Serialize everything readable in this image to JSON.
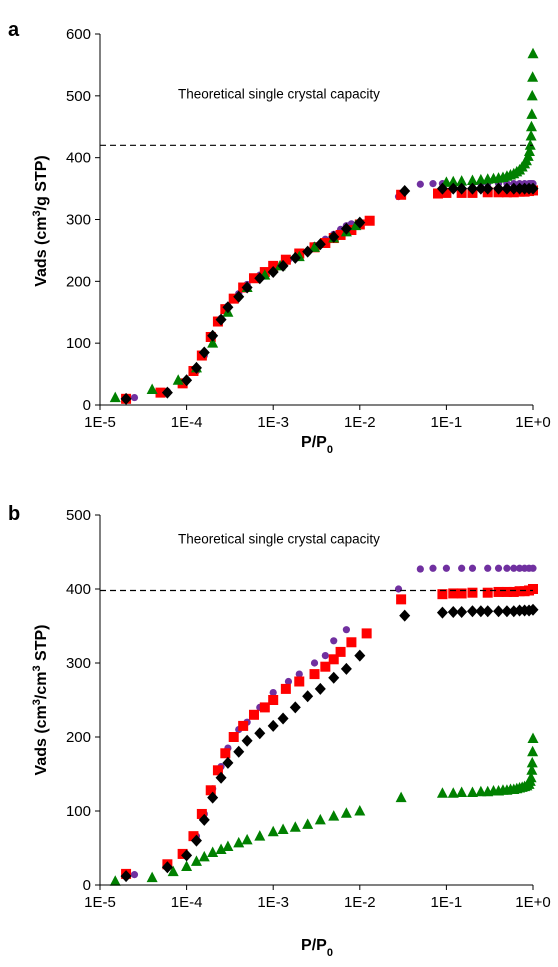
{
  "chart_data": [
    {
      "type": "scatter",
      "panel_label": "a",
      "title": "",
      "xlabel": "P/P",
      "xlabel_sub": "0",
      "ylabel_pre": "Vads (cm",
      "ylabel_sup": "3",
      "ylabel_post": "/g STP)",
      "xscale": "log",
      "xlim": [
        1e-05,
        1
      ],
      "ylim": [
        0,
        600
      ],
      "xtick_labels": [
        "1E-5",
        "1E-4",
        "1E-3",
        "1E-2",
        "1E-1",
        "1E+0"
      ],
      "ytick_values": [
        0,
        100,
        200,
        300,
        400,
        500,
        600
      ],
      "grid": false,
      "annotation": {
        "text": "Theoretical single crystal capacity",
        "reference_y": 420
      },
      "series": [
        {
          "marker": "circle",
          "color": "#7030a0",
          "x": [
            2.5e-05,
            6e-05,
            9e-05,
            0.00013,
            0.00016,
            0.0002,
            0.00025,
            0.0003,
            0.0004,
            0.0005,
            0.0007,
            0.001,
            0.0015,
            0.002,
            0.003,
            0.004,
            0.005,
            0.006,
            0.007,
            0.008,
            0.028,
            0.05,
            0.07,
            0.09,
            0.12,
            0.15,
            0.2,
            0.25,
            0.3,
            0.4,
            0.5,
            0.6,
            0.7,
            0.8,
            0.9,
            0.95,
            1.0
          ],
          "y": [
            12,
            22,
            36,
            55,
            80,
            110,
            140,
            160,
            180,
            195,
            210,
            225,
            235,
            245,
            258,
            268,
            276,
            284,
            290,
            293,
            337,
            357,
            358,
            358,
            358,
            358,
            358,
            358,
            358,
            358,
            358,
            358,
            358,
            358,
            358,
            358,
            358
          ]
        },
        {
          "marker": "square",
          "color": "#ff0000",
          "x": [
            2e-05,
            5e-05,
            9e-05,
            0.00012,
            0.00015,
            0.00019,
            0.00023,
            0.00028,
            0.00035,
            0.00045,
            0.0006,
            0.0008,
            0.001,
            0.0014,
            0.002,
            0.003,
            0.004,
            0.005,
            0.006,
            0.008,
            0.01,
            0.013,
            0.03,
            0.08,
            0.1,
            0.15,
            0.2,
            0.3,
            0.4,
            0.5,
            0.6,
            0.7,
            0.8,
            0.9,
            1.0
          ],
          "y": [
            10,
            20,
            35,
            55,
            80,
            110,
            135,
            155,
            172,
            190,
            205,
            215,
            225,
            235,
            245,
            255,
            262,
            270,
            275,
            283,
            292,
            298,
            340,
            342,
            343,
            343,
            343,
            344,
            344,
            344,
            344,
            345,
            345,
            346,
            347
          ]
        },
        {
          "marker": "triangle",
          "color": "#008000",
          "x": [
            1.5e-05,
            4e-05,
            8e-05,
            0.00013,
            0.0002,
            0.0003,
            0.0005,
            0.0008,
            0.0012,
            0.002,
            0.003,
            0.005,
            0.007,
            0.009,
            0.1,
            0.12,
            0.15,
            0.2,
            0.25,
            0.3,
            0.35,
            0.4,
            0.45,
            0.5,
            0.55,
            0.6,
            0.65,
            0.7,
            0.75,
            0.8,
            0.84,
            0.88,
            0.91,
            0.93,
            0.95,
            0.96,
            0.97,
            0.98,
            0.99,
            1.0
          ],
          "y": [
            12,
            25,
            40,
            60,
            100,
            150,
            190,
            210,
            225,
            240,
            255,
            270,
            280,
            290,
            360,
            361,
            362,
            363,
            364,
            365,
            366,
            367,
            368,
            370,
            372,
            374,
            377,
            380,
            385,
            390,
            395,
            402,
            410,
            420,
            435,
            450,
            470,
            500,
            530,
            568
          ]
        },
        {
          "marker": "diamond",
          "color": "#000000",
          "x": [
            2e-05,
            6e-05,
            0.0001,
            0.00013,
            0.00016,
            0.0002,
            0.00025,
            0.0003,
            0.0004,
            0.0005,
            0.0007,
            0.001,
            0.0013,
            0.0018,
            0.0025,
            0.0035,
            0.005,
            0.007,
            0.01,
            0.033,
            0.09,
            0.12,
            0.15,
            0.2,
            0.25,
            0.3,
            0.4,
            0.5,
            0.6,
            0.7,
            0.8,
            0.9,
            1.0
          ],
          "y": [
            10,
            20,
            40,
            60,
            85,
            112,
            138,
            158,
            175,
            190,
            205,
            215,
            225,
            238,
            248,
            260,
            272,
            285,
            295,
            346,
            350,
            350,
            350,
            350,
            350,
            350,
            350,
            350,
            350,
            350,
            350,
            350,
            350
          ]
        }
      ]
    },
    {
      "type": "scatter",
      "panel_label": "b",
      "title": "",
      "xlabel": "P/P",
      "xlabel_sub": "0",
      "ylabel_pre": "Vads (cm",
      "ylabel_sup": "3",
      "ylabel_mid": "/cm",
      "ylabel_sup2": "3",
      "ylabel_post": " STP)",
      "xscale": "log",
      "xlim": [
        1e-05,
        1
      ],
      "ylim": [
        0,
        500
      ],
      "xtick_labels": [
        "1E-5",
        "1E-4",
        "1E-3",
        "1E-2",
        "1E-1",
        "1E+0"
      ],
      "ytick_values": [
        0,
        100,
        200,
        300,
        400,
        500
      ],
      "grid": false,
      "annotation": {
        "text": "Theoretical single crystal capacity",
        "reference_y": 398
      },
      "series": [
        {
          "marker": "circle",
          "color": "#7030a0",
          "x": [
            2.5e-05,
            6e-05,
            9e-05,
            0.00013,
            0.00016,
            0.0002,
            0.00025,
            0.0003,
            0.0004,
            0.0005,
            0.0007,
            0.001,
            0.0015,
            0.002,
            0.003,
            0.004,
            0.005,
            0.007,
            0.028,
            0.05,
            0.07,
            0.1,
            0.15,
            0.2,
            0.3,
            0.4,
            0.5,
            0.6,
            0.7,
            0.8,
            0.9,
            1.0
          ],
          "y": [
            14,
            26,
            42,
            66,
            96,
            130,
            160,
            185,
            210,
            220,
            240,
            260,
            275,
            285,
            300,
            310,
            330,
            345,
            400,
            427,
            428,
            428,
            428,
            428,
            428,
            428,
            428,
            428,
            428,
            428,
            428,
            428
          ]
        },
        {
          "marker": "square",
          "color": "#ff0000",
          "x": [
            2e-05,
            6e-05,
            9e-05,
            0.00012,
            0.00015,
            0.00019,
            0.00023,
            0.00028,
            0.00035,
            0.00045,
            0.0006,
            0.0008,
            0.001,
            0.0014,
            0.002,
            0.003,
            0.004,
            0.005,
            0.006,
            0.008,
            0.012,
            0.03,
            0.09,
            0.12,
            0.15,
            0.2,
            0.3,
            0.4,
            0.5,
            0.6,
            0.7,
            0.8,
            0.9,
            1.0
          ],
          "y": [
            15,
            28,
            42,
            66,
            96,
            128,
            155,
            178,
            200,
            215,
            230,
            240,
            250,
            265,
            275,
            285,
            295,
            305,
            315,
            328,
            340,
            386,
            393,
            394,
            394,
            395,
            395,
            396,
            396,
            396,
            397,
            397,
            398,
            400
          ]
        },
        {
          "marker": "triangle",
          "color": "#008000",
          "x": [
            1.5e-05,
            4e-05,
            7e-05,
            0.0001,
            0.00013,
            0.00016,
            0.0002,
            0.00025,
            0.0003,
            0.0004,
            0.0005,
            0.0007,
            0.001,
            0.0013,
            0.0018,
            0.0025,
            0.0035,
            0.005,
            0.007,
            0.01,
            0.03,
            0.09,
            0.12,
            0.15,
            0.2,
            0.25,
            0.3,
            0.35,
            0.4,
            0.45,
            0.5,
            0.55,
            0.6,
            0.65,
            0.7,
            0.75,
            0.8,
            0.85,
            0.9,
            0.93,
            0.95,
            0.97,
            0.98,
            0.99,
            1.0
          ],
          "y": [
            5,
            10,
            18,
            25,
            32,
            38,
            44,
            48,
            52,
            57,
            61,
            66,
            72,
            75,
            78,
            82,
            88,
            93,
            97,
            100,
            118,
            124,
            124,
            125,
            125,
            126,
            126,
            127,
            127,
            128,
            128,
            129,
            129,
            130,
            131,
            132,
            133,
            134,
            136,
            140,
            145,
            155,
            165,
            180,
            198
          ]
        },
        {
          "marker": "diamond",
          "color": "#000000",
          "x": [
            2e-05,
            6e-05,
            0.0001,
            0.00013,
            0.00016,
            0.0002,
            0.00025,
            0.0003,
            0.0004,
            0.0005,
            0.0007,
            0.001,
            0.0013,
            0.0018,
            0.0025,
            0.0035,
            0.005,
            0.007,
            0.01,
            0.033,
            0.09,
            0.12,
            0.15,
            0.2,
            0.25,
            0.3,
            0.4,
            0.5,
            0.6,
            0.7,
            0.8,
            0.9,
            1.0
          ],
          "y": [
            12,
            24,
            40,
            60,
            88,
            118,
            145,
            165,
            180,
            195,
            205,
            215,
            225,
            240,
            255,
            265,
            280,
            292,
            310,
            364,
            368,
            369,
            369,
            370,
            370,
            370,
            370,
            370,
            370,
            371,
            371,
            371,
            372
          ]
        }
      ]
    }
  ]
}
